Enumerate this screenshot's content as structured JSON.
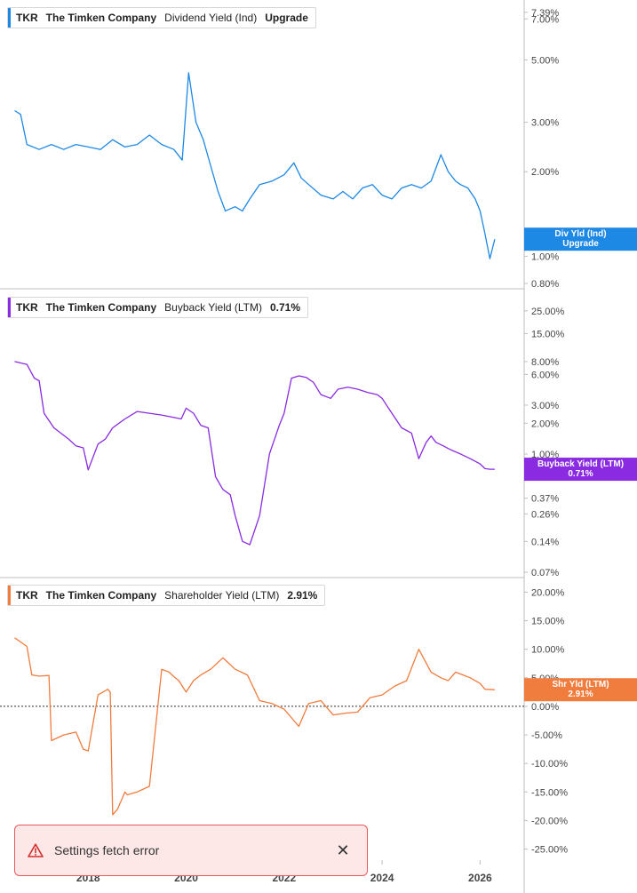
{
  "chart_data": [
    {
      "type": "line",
      "scale": "log",
      "color": "#1e88e5",
      "legend": {
        "ticker": "TKR",
        "company": "The Timken Company",
        "metric": "Dividend Yield (Ind)",
        "value": "Upgrade"
      },
      "ticks": [
        "7.39%",
        "7.00%",
        "5.00%",
        "3.00%",
        "2.00%",
        "1.00%",
        "0.80%"
      ],
      "tick_values": [
        7.39,
        7.0,
        5.0,
        3.0,
        2.0,
        1.0,
        0.8
      ],
      "ylim": [
        0.8,
        7.6
      ],
      "end_label": [
        "Div Yld (Ind)",
        "Upgrade"
      ],
      "end_value": 1.15,
      "x": [
        2016.5,
        2016.62,
        2016.75,
        2017.0,
        2017.25,
        2017.5,
        2017.75,
        2018.0,
        2018.25,
        2018.5,
        2018.75,
        2019.0,
        2019.25,
        2019.5,
        2019.75,
        2019.92,
        2020.05,
        2020.2,
        2020.35,
        2020.5,
        2020.65,
        2020.8,
        2021.0,
        2021.15,
        2021.3,
        2021.5,
        2021.75,
        2022.0,
        2022.2,
        2022.35,
        2022.5,
        2022.75,
        2023.0,
        2023.2,
        2023.4,
        2023.6,
        2023.8,
        2024.0,
        2024.2,
        2024.4,
        2024.6,
        2024.8,
        2025.0,
        2025.2,
        2025.35,
        2025.5,
        2025.6,
        2025.75,
        2025.9,
        2026.0,
        2026.1,
        2026.2,
        2026.3
      ],
      "y": [
        3.3,
        3.2,
        2.5,
        2.4,
        2.5,
        2.4,
        2.5,
        2.45,
        2.4,
        2.6,
        2.45,
        2.5,
        2.7,
        2.5,
        2.4,
        2.2,
        4.5,
        3.0,
        2.6,
        2.1,
        1.7,
        1.45,
        1.5,
        1.45,
        1.6,
        1.8,
        1.85,
        1.95,
        2.15,
        1.9,
        1.8,
        1.65,
        1.6,
        1.7,
        1.6,
        1.75,
        1.8,
        1.65,
        1.6,
        1.75,
        1.8,
        1.75,
        1.85,
        2.3,
        2.0,
        1.85,
        1.8,
        1.75,
        1.6,
        1.45,
        1.2,
        0.98,
        1.15
      ]
    },
    {
      "type": "line",
      "scale": "log",
      "color": "#8a2be2",
      "legend": {
        "ticker": "TKR",
        "company": "The Timken Company",
        "metric": "Buyback Yield (LTM)",
        "value": "0.71%"
      },
      "ticks": [
        "25.00%",
        "15.00%",
        "8.00%",
        "6.00%",
        "3.00%",
        "2.00%",
        "1.00%",
        "0.37%",
        "0.26%",
        "0.14%",
        "0.07%"
      ],
      "tick_values": [
        25,
        15,
        8,
        6,
        3,
        2,
        1,
        0.37,
        0.26,
        0.14,
        0.07
      ],
      "ylim": [
        0.07,
        33
      ],
      "end_label": [
        "Buyback Yield (LTM)",
        "0.71%"
      ],
      "end_value": 0.71,
      "x": [
        2016.5,
        2016.75,
        2016.9,
        2017.0,
        2017.1,
        2017.3,
        2017.6,
        2017.75,
        2017.9,
        2018.0,
        2018.2,
        2018.35,
        2018.5,
        2018.75,
        2019.0,
        2019.25,
        2019.5,
        2019.7,
        2019.9,
        2020.0,
        2020.15,
        2020.3,
        2020.45,
        2020.6,
        2020.75,
        2020.9,
        2021.0,
        2021.15,
        2021.3,
        2021.5,
        2021.7,
        2021.9,
        2022.0,
        2022.15,
        2022.3,
        2022.45,
        2022.6,
        2022.75,
        2022.95,
        2023.1,
        2023.3,
        2023.5,
        2023.7,
        2023.9,
        2024.0,
        2024.2,
        2024.4,
        2024.6,
        2024.75,
        2024.9,
        2025.0,
        2025.1,
        2025.25,
        2025.4,
        2025.6,
        2025.8,
        2026.0,
        2026.1,
        2026.2,
        2026.3
      ],
      "y": [
        8.0,
        7.5,
        5.5,
        5.2,
        2.5,
        1.8,
        1.4,
        1.2,
        1.15,
        0.7,
        1.25,
        1.4,
        1.8,
        2.2,
        2.6,
        2.5,
        2.4,
        2.3,
        2.2,
        2.8,
        2.5,
        1.9,
        1.8,
        0.6,
        0.45,
        0.4,
        0.25,
        0.14,
        0.13,
        0.25,
        1.0,
        1.9,
        2.5,
        5.5,
        5.8,
        5.6,
        5.0,
        3.8,
        3.5,
        4.3,
        4.5,
        4.3,
        4.0,
        3.8,
        3.5,
        2.5,
        1.8,
        1.6,
        0.9,
        1.3,
        1.5,
        1.3,
        1.2,
        1.1,
        1.0,
        0.9,
        0.8,
        0.72,
        0.71,
        0.71
      ]
    },
    {
      "type": "line",
      "scale": "linear",
      "color": "#f07c3e",
      "legend": {
        "ticker": "TKR",
        "company": "The Timken Company",
        "metric": "Shareholder Yield (LTM)",
        "value": "2.91%"
      },
      "ticks": [
        "20.00%",
        "15.00%",
        "10.00%",
        "5.00%",
        "0.00%",
        "-5.00%",
        "-10.00%",
        "-15.00%",
        "-20.00%",
        "-25.00%"
      ],
      "tick_values": [
        20,
        15,
        10,
        5,
        0,
        -5,
        -10,
        -15,
        -20,
        -25
      ],
      "ylim": [
        -26,
        21
      ],
      "zero_line": true,
      "end_label": [
        "Shr Yld (LTM)",
        "2.91%"
      ],
      "end_value": 2.91,
      "x": [
        2016.5,
        2016.75,
        2016.85,
        2017.0,
        2017.2,
        2017.25,
        2017.5,
        2017.75,
        2017.9,
        2018.0,
        2018.2,
        2018.3,
        2018.4,
        2018.45,
        2018.5,
        2018.6,
        2018.7,
        2018.75,
        2018.8,
        2019.0,
        2019.25,
        2019.5,
        2019.65,
        2019.75,
        2019.85,
        2020.0,
        2020.15,
        2020.3,
        2020.5,
        2020.75,
        2021.0,
        2021.25,
        2021.5,
        2021.75,
        2022.0,
        2022.2,
        2022.3,
        2022.5,
        2022.75,
        2023.0,
        2023.25,
        2023.5,
        2023.75,
        2024.0,
        2024.25,
        2024.5,
        2024.75,
        2025.0,
        2025.2,
        2025.35,
        2025.5,
        2025.65,
        2025.8,
        2026.0,
        2026.1,
        2026.3
      ],
      "y": [
        12.0,
        10.5,
        5.5,
        5.3,
        5.4,
        -6.0,
        -5.0,
        -4.5,
        -7.5,
        -7.8,
        2.0,
        2.5,
        3.0,
        2.5,
        -19.0,
        -18.0,
        -16.0,
        -15.0,
        -15.5,
        -15.0,
        -14.0,
        6.5,
        6.0,
        5.2,
        4.5,
        2.5,
        4.5,
        5.5,
        6.5,
        8.5,
        6.5,
        5.5,
        1.0,
        0.5,
        -0.5,
        -2.5,
        -3.5,
        0.5,
        1.0,
        -1.5,
        -1.2,
        -1.0,
        1.5,
        2.0,
        3.5,
        4.5,
        10.0,
        6.0,
        5.0,
        4.5,
        6.0,
        5.5,
        5.0,
        4.0,
        3.0,
        2.91
      ]
    }
  ],
  "x_axis": {
    "labels": [
      "2018",
      "2020",
      "2022",
      "2024",
      "2026"
    ],
    "values": [
      2018,
      2020,
      2022,
      2024,
      2026
    ],
    "xlim": [
      2016.2,
      2026.9
    ]
  },
  "toast": {
    "message": "Settings fetch error",
    "close_glyph": "✕",
    "border_color": "#e55b5b",
    "background": "#fde7e7"
  }
}
